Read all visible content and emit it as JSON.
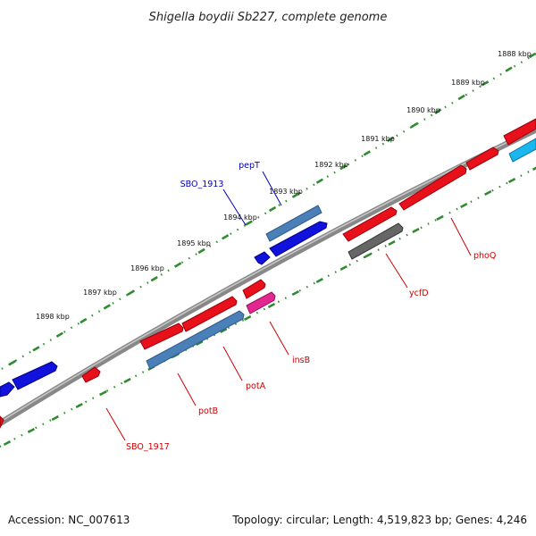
{
  "title": "Shigella boydii Sb227, complete genome",
  "footer": {
    "accession": "Accession: NC_007613",
    "summary": "Topology: circular; Length: 4,519,823 bp; Genes: 4,246"
  },
  "colors": {
    "backbone": "#808080",
    "tick": "#2e8b2e",
    "red": "#e8101a",
    "steel": "#4a7fb8",
    "blue": "#1212dd",
    "cyan": "#1ab7ee",
    "gray": "#666666",
    "magenta": "#e0288f",
    "label_red": "#cc0000",
    "label_blue": "#0000bb"
  },
  "ticks": [
    {
      "label": "1888 kbp"
    },
    {
      "label": "1889 kbp"
    },
    {
      "label": "1890 kbp"
    },
    {
      "label": "1891 kbp"
    },
    {
      "label": "1892 kbp"
    },
    {
      "label": "1893 kbp"
    },
    {
      "label": "1894 kbp"
    },
    {
      "label": "1895 kbp"
    },
    {
      "label": "1896 kbp"
    },
    {
      "label": "1897 kbp"
    },
    {
      "label": "1898 kbp"
    }
  ],
  "genes": [
    {
      "label": "pepT",
      "color": "blue"
    },
    {
      "label": "SBO_1913",
      "color": "blue"
    },
    {
      "label": "phoQ",
      "color": "red"
    },
    {
      "label": "ycfD",
      "color": "red"
    },
    {
      "label": "insB",
      "color": "red"
    },
    {
      "label": "potA",
      "color": "red"
    },
    {
      "label": "potB",
      "color": "red"
    },
    {
      "label": "SBO_1917",
      "color": "red"
    }
  ]
}
